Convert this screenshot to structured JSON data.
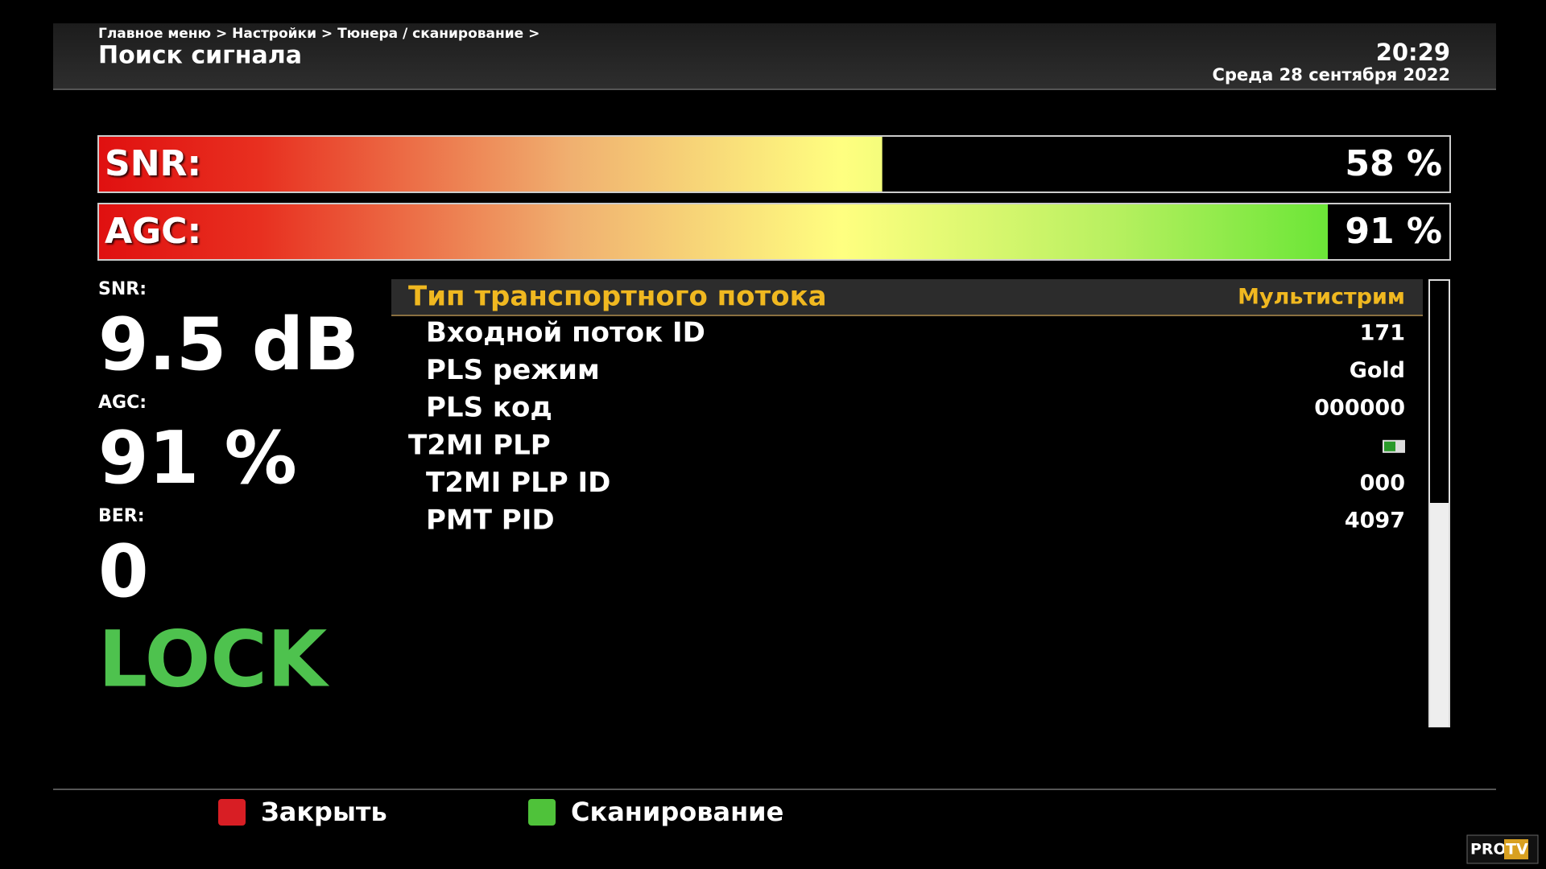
{
  "header": {
    "breadcrumb": "Главное меню > Настройки > Тюнера / сканирование >",
    "title": "Поиск сигнала",
    "time": "20:29",
    "date": "Среда 28 сентября 2022"
  },
  "bars": [
    {
      "label": "SNR:",
      "value": 58,
      "value_label": "58 %"
    },
    {
      "label": "AGC:",
      "value": 91,
      "value_label": "91 %"
    }
  ],
  "stats": [
    {
      "label": "SNR:",
      "value": "9.5 dB"
    },
    {
      "label": "AGC:",
      "value": "91 %"
    },
    {
      "label": "BER:",
      "value": "0"
    }
  ],
  "status": "LOCK",
  "table": {
    "header": {
      "label": "Тип транспортного потока",
      "value": "Мультистрим"
    },
    "rows": [
      {
        "label": "Входной поток ID",
        "value": "171",
        "indent": true
      },
      {
        "label": "PLS режим",
        "value": "Gold",
        "indent": true
      },
      {
        "label": "PLS код",
        "value": "000000",
        "indent": true
      },
      {
        "label": "T2MI PLP",
        "indent": false,
        "toggle": true
      },
      {
        "label": "T2MI PLP ID",
        "value": "000",
        "indent": true
      },
      {
        "label": "PMT PID",
        "value": "4097",
        "indent": true
      }
    ]
  },
  "footer": {
    "buttons": [
      {
        "label": "Закрыть",
        "color": "#d81e24"
      },
      {
        "label": "Сканирование",
        "color": "#4fc23a"
      }
    ]
  },
  "watermark": {
    "brand": "PRO",
    "tv": "TV"
  }
}
